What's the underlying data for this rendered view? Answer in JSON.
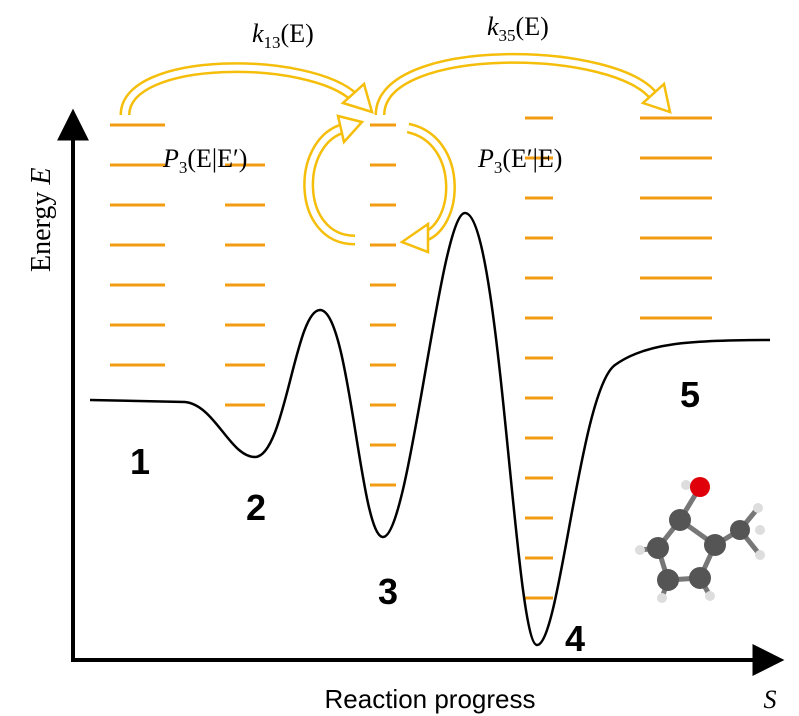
{
  "rate_labels": [
    {
      "symbol": "k",
      "subscript": "13",
      "argument": "(E)"
    },
    {
      "symbol": "k",
      "subscript": "35",
      "argument": "(E)"
    }
  ],
  "probability_labels": [
    {
      "symbol": "P",
      "subscript": "3",
      "argument": "(E|E′)"
    },
    {
      "symbol": "P",
      "subscript": "3",
      "argument": "(E′|E)"
    }
  ],
  "axes": {
    "y_label": "Energy",
    "y_symbol": "E",
    "x_label": "Reaction progress",
    "x_symbol": "S"
  },
  "wells": [
    "1",
    "2",
    "3",
    "4",
    "5"
  ]
}
